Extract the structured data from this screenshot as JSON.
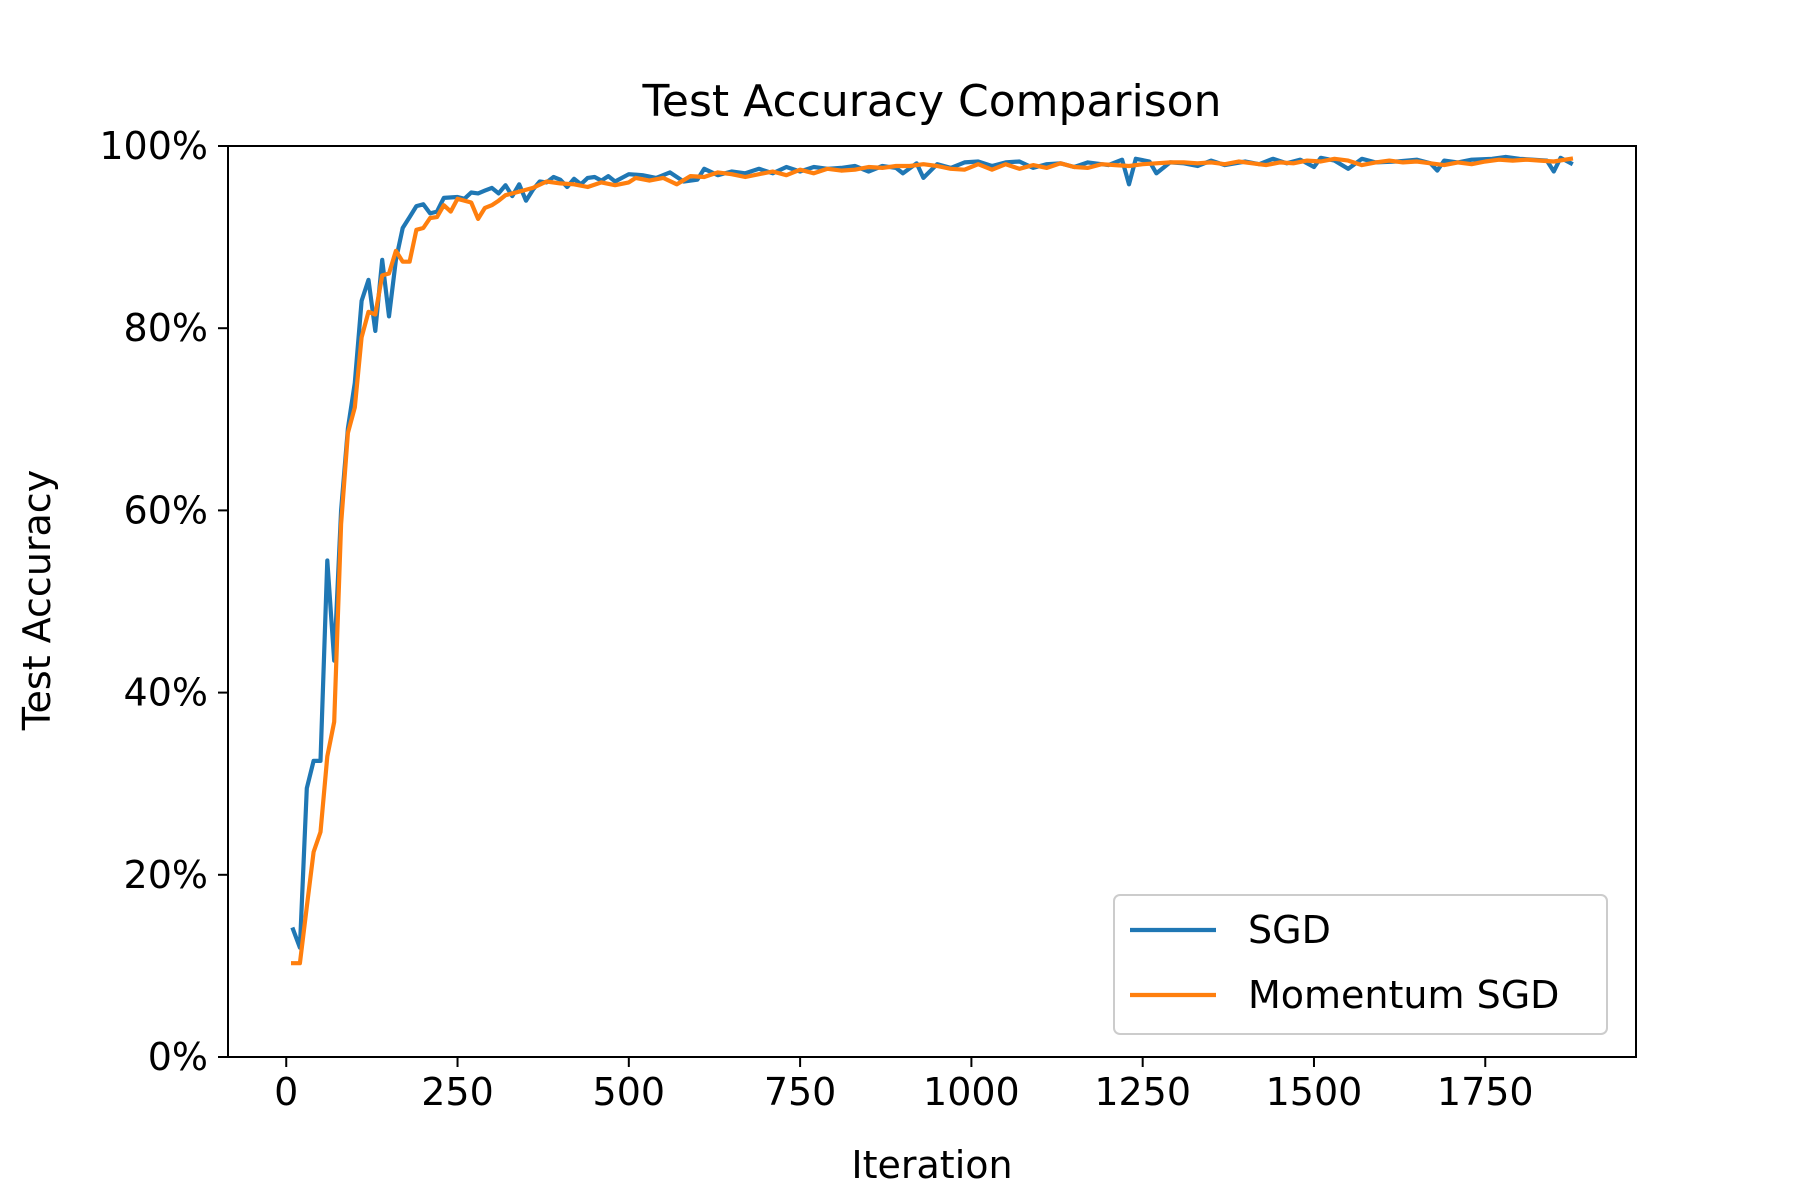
{
  "chart_data": {
    "type": "line",
    "title": "Test Accuracy Comparison",
    "xlabel": "Iteration",
    "ylabel": "Test Accuracy",
    "xlim": [
      -85,
      1970
    ],
    "ylim": [
      0,
      1
    ],
    "x_ticks": [
      0,
      250,
      500,
      750,
      1000,
      1250,
      1500,
      1750
    ],
    "x_tick_labels": [
      "0",
      "250",
      "500",
      "750",
      "1000",
      "1250",
      "1500",
      "1750"
    ],
    "y_ticks": [
      0,
      0.2,
      0.4,
      0.6,
      0.8,
      1.0
    ],
    "y_tick_labels": [
      "0%",
      "20%",
      "40%",
      "60%",
      "80%",
      "100%"
    ],
    "grid": false,
    "legend_position": "lower-right",
    "series": [
      {
        "name": "SGD",
        "color": "#1f77b4",
        "points": [
          [
            10,
            0.14
          ],
          [
            20,
            0.12
          ],
          [
            30,
            0.295
          ],
          [
            40,
            0.325
          ],
          [
            50,
            0.325
          ],
          [
            60,
            0.545
          ],
          [
            70,
            0.435
          ],
          [
            80,
            0.6
          ],
          [
            90,
            0.69
          ],
          [
            100,
            0.74
          ],
          [
            110,
            0.83
          ],
          [
            120,
            0.853
          ],
          [
            130,
            0.797
          ],
          [
            140,
            0.875
          ],
          [
            150,
            0.813
          ],
          [
            160,
            0.875
          ],
          [
            170,
            0.91
          ],
          [
            180,
            0.922
          ],
          [
            190,
            0.934
          ],
          [
            200,
            0.936
          ],
          [
            210,
            0.926
          ],
          [
            220,
            0.928
          ],
          [
            230,
            0.943
          ],
          [
            250,
            0.944
          ],
          [
            260,
            0.942
          ],
          [
            270,
            0.949
          ],
          [
            280,
            0.948
          ],
          [
            290,
            0.951
          ],
          [
            300,
            0.954
          ],
          [
            310,
            0.948
          ],
          [
            320,
            0.957
          ],
          [
            330,
            0.945
          ],
          [
            340,
            0.958
          ],
          [
            350,
            0.94
          ],
          [
            360,
            0.952
          ],
          [
            370,
            0.961
          ],
          [
            380,
            0.96
          ],
          [
            390,
            0.966
          ],
          [
            400,
            0.963
          ],
          [
            410,
            0.955
          ],
          [
            420,
            0.964
          ],
          [
            430,
            0.958
          ],
          [
            440,
            0.965
          ],
          [
            450,
            0.966
          ],
          [
            460,
            0.962
          ],
          [
            470,
            0.967
          ],
          [
            480,
            0.961
          ],
          [
            500,
            0.969
          ],
          [
            520,
            0.968
          ],
          [
            540,
            0.965
          ],
          [
            560,
            0.971
          ],
          [
            580,
            0.961
          ],
          [
            600,
            0.963
          ],
          [
            610,
            0.975
          ],
          [
            630,
            0.968
          ],
          [
            650,
            0.972
          ],
          [
            670,
            0.97
          ],
          [
            690,
            0.975
          ],
          [
            710,
            0.97
          ],
          [
            730,
            0.977
          ],
          [
            750,
            0.972
          ],
          [
            770,
            0.977
          ],
          [
            790,
            0.975
          ],
          [
            810,
            0.976
          ],
          [
            830,
            0.978
          ],
          [
            850,
            0.972
          ],
          [
            870,
            0.978
          ],
          [
            890,
            0.976
          ],
          [
            900,
            0.97
          ],
          [
            920,
            0.981
          ],
          [
            930,
            0.965
          ],
          [
            950,
            0.98
          ],
          [
            970,
            0.976
          ],
          [
            990,
            0.982
          ],
          [
            1010,
            0.983
          ],
          [
            1030,
            0.978
          ],
          [
            1050,
            0.982
          ],
          [
            1070,
            0.983
          ],
          [
            1090,
            0.976
          ],
          [
            1110,
            0.98
          ],
          [
            1130,
            0.981
          ],
          [
            1150,
            0.977
          ],
          [
            1170,
            0.982
          ],
          [
            1200,
            0.979
          ],
          [
            1220,
            0.985
          ],
          [
            1230,
            0.958
          ],
          [
            1240,
            0.986
          ],
          [
            1260,
            0.983
          ],
          [
            1270,
            0.97
          ],
          [
            1290,
            0.982
          ],
          [
            1310,
            0.981
          ],
          [
            1330,
            0.978
          ],
          [
            1350,
            0.984
          ],
          [
            1370,
            0.979
          ],
          [
            1400,
            0.983
          ],
          [
            1420,
            0.98
          ],
          [
            1440,
            0.986
          ],
          [
            1460,
            0.981
          ],
          [
            1480,
            0.985
          ],
          [
            1500,
            0.977
          ],
          [
            1510,
            0.987
          ],
          [
            1530,
            0.984
          ],
          [
            1550,
            0.975
          ],
          [
            1570,
            0.986
          ],
          [
            1590,
            0.982
          ],
          [
            1620,
            0.983
          ],
          [
            1650,
            0.985
          ],
          [
            1670,
            0.981
          ],
          [
            1680,
            0.973
          ],
          [
            1690,
            0.984
          ],
          [
            1710,
            0.982
          ],
          [
            1730,
            0.985
          ],
          [
            1760,
            0.986
          ],
          [
            1780,
            0.988
          ],
          [
            1800,
            0.986
          ],
          [
            1820,
            0.985
          ],
          [
            1840,
            0.984
          ],
          [
            1850,
            0.972
          ],
          [
            1860,
            0.987
          ],
          [
            1875,
            0.981
          ]
        ]
      },
      {
        "name": "Momentum SGD",
        "color": "#ff7f0e",
        "points": [
          [
            10,
            0.103
          ],
          [
            20,
            0.103
          ],
          [
            30,
            0.165
          ],
          [
            40,
            0.225
          ],
          [
            50,
            0.247
          ],
          [
            60,
            0.33
          ],
          [
            70,
            0.368
          ],
          [
            80,
            0.585
          ],
          [
            90,
            0.685
          ],
          [
            100,
            0.713
          ],
          [
            110,
            0.79
          ],
          [
            120,
            0.818
          ],
          [
            130,
            0.815
          ],
          [
            140,
            0.858
          ],
          [
            150,
            0.86
          ],
          [
            160,
            0.885
          ],
          [
            170,
            0.873
          ],
          [
            180,
            0.873
          ],
          [
            190,
            0.908
          ],
          [
            200,
            0.91
          ],
          [
            210,
            0.921
          ],
          [
            220,
            0.922
          ],
          [
            230,
            0.935
          ],
          [
            240,
            0.928
          ],
          [
            250,
            0.942
          ],
          [
            270,
            0.938
          ],
          [
            280,
            0.92
          ],
          [
            290,
            0.932
          ],
          [
            300,
            0.935
          ],
          [
            310,
            0.94
          ],
          [
            320,
            0.946
          ],
          [
            340,
            0.95
          ],
          [
            360,
            0.954
          ],
          [
            380,
            0.961
          ],
          [
            400,
            0.959
          ],
          [
            420,
            0.958
          ],
          [
            440,
            0.955
          ],
          [
            460,
            0.96
          ],
          [
            480,
            0.957
          ],
          [
            500,
            0.96
          ],
          [
            510,
            0.965
          ],
          [
            530,
            0.962
          ],
          [
            550,
            0.965
          ],
          [
            570,
            0.958
          ],
          [
            590,
            0.967
          ],
          [
            610,
            0.966
          ],
          [
            630,
            0.971
          ],
          [
            650,
            0.969
          ],
          [
            670,
            0.966
          ],
          [
            690,
            0.969
          ],
          [
            710,
            0.972
          ],
          [
            730,
            0.968
          ],
          [
            750,
            0.974
          ],
          [
            770,
            0.97
          ],
          [
            790,
            0.975
          ],
          [
            810,
            0.973
          ],
          [
            830,
            0.974
          ],
          [
            850,
            0.977
          ],
          [
            870,
            0.976
          ],
          [
            890,
            0.978
          ],
          [
            910,
            0.978
          ],
          [
            930,
            0.98
          ],
          [
            950,
            0.978
          ],
          [
            970,
            0.975
          ],
          [
            990,
            0.974
          ],
          [
            1010,
            0.98
          ],
          [
            1030,
            0.974
          ],
          [
            1050,
            0.98
          ],
          [
            1070,
            0.975
          ],
          [
            1090,
            0.979
          ],
          [
            1110,
            0.976
          ],
          [
            1130,
            0.981
          ],
          [
            1150,
            0.977
          ],
          [
            1170,
            0.976
          ],
          [
            1190,
            0.98
          ],
          [
            1210,
            0.979
          ],
          [
            1230,
            0.978
          ],
          [
            1250,
            0.98
          ],
          [
            1270,
            0.981
          ],
          [
            1290,
            0.982
          ],
          [
            1310,
            0.982
          ],
          [
            1330,
            0.981
          ],
          [
            1350,
            0.982
          ],
          [
            1370,
            0.98
          ],
          [
            1390,
            0.983
          ],
          [
            1410,
            0.981
          ],
          [
            1430,
            0.979
          ],
          [
            1450,
            0.982
          ],
          [
            1470,
            0.981
          ],
          [
            1490,
            0.984
          ],
          [
            1510,
            0.983
          ],
          [
            1530,
            0.986
          ],
          [
            1550,
            0.984
          ],
          [
            1570,
            0.979
          ],
          [
            1590,
            0.982
          ],
          [
            1610,
            0.984
          ],
          [
            1630,
            0.982
          ],
          [
            1650,
            0.983
          ],
          [
            1670,
            0.981
          ],
          [
            1690,
            0.979
          ],
          [
            1710,
            0.982
          ],
          [
            1730,
            0.98
          ],
          [
            1750,
            0.983
          ],
          [
            1770,
            0.985
          ],
          [
            1790,
            0.984
          ],
          [
            1810,
            0.985
          ],
          [
            1830,
            0.984
          ],
          [
            1850,
            0.983
          ],
          [
            1875,
            0.986
          ]
        ]
      }
    ]
  }
}
